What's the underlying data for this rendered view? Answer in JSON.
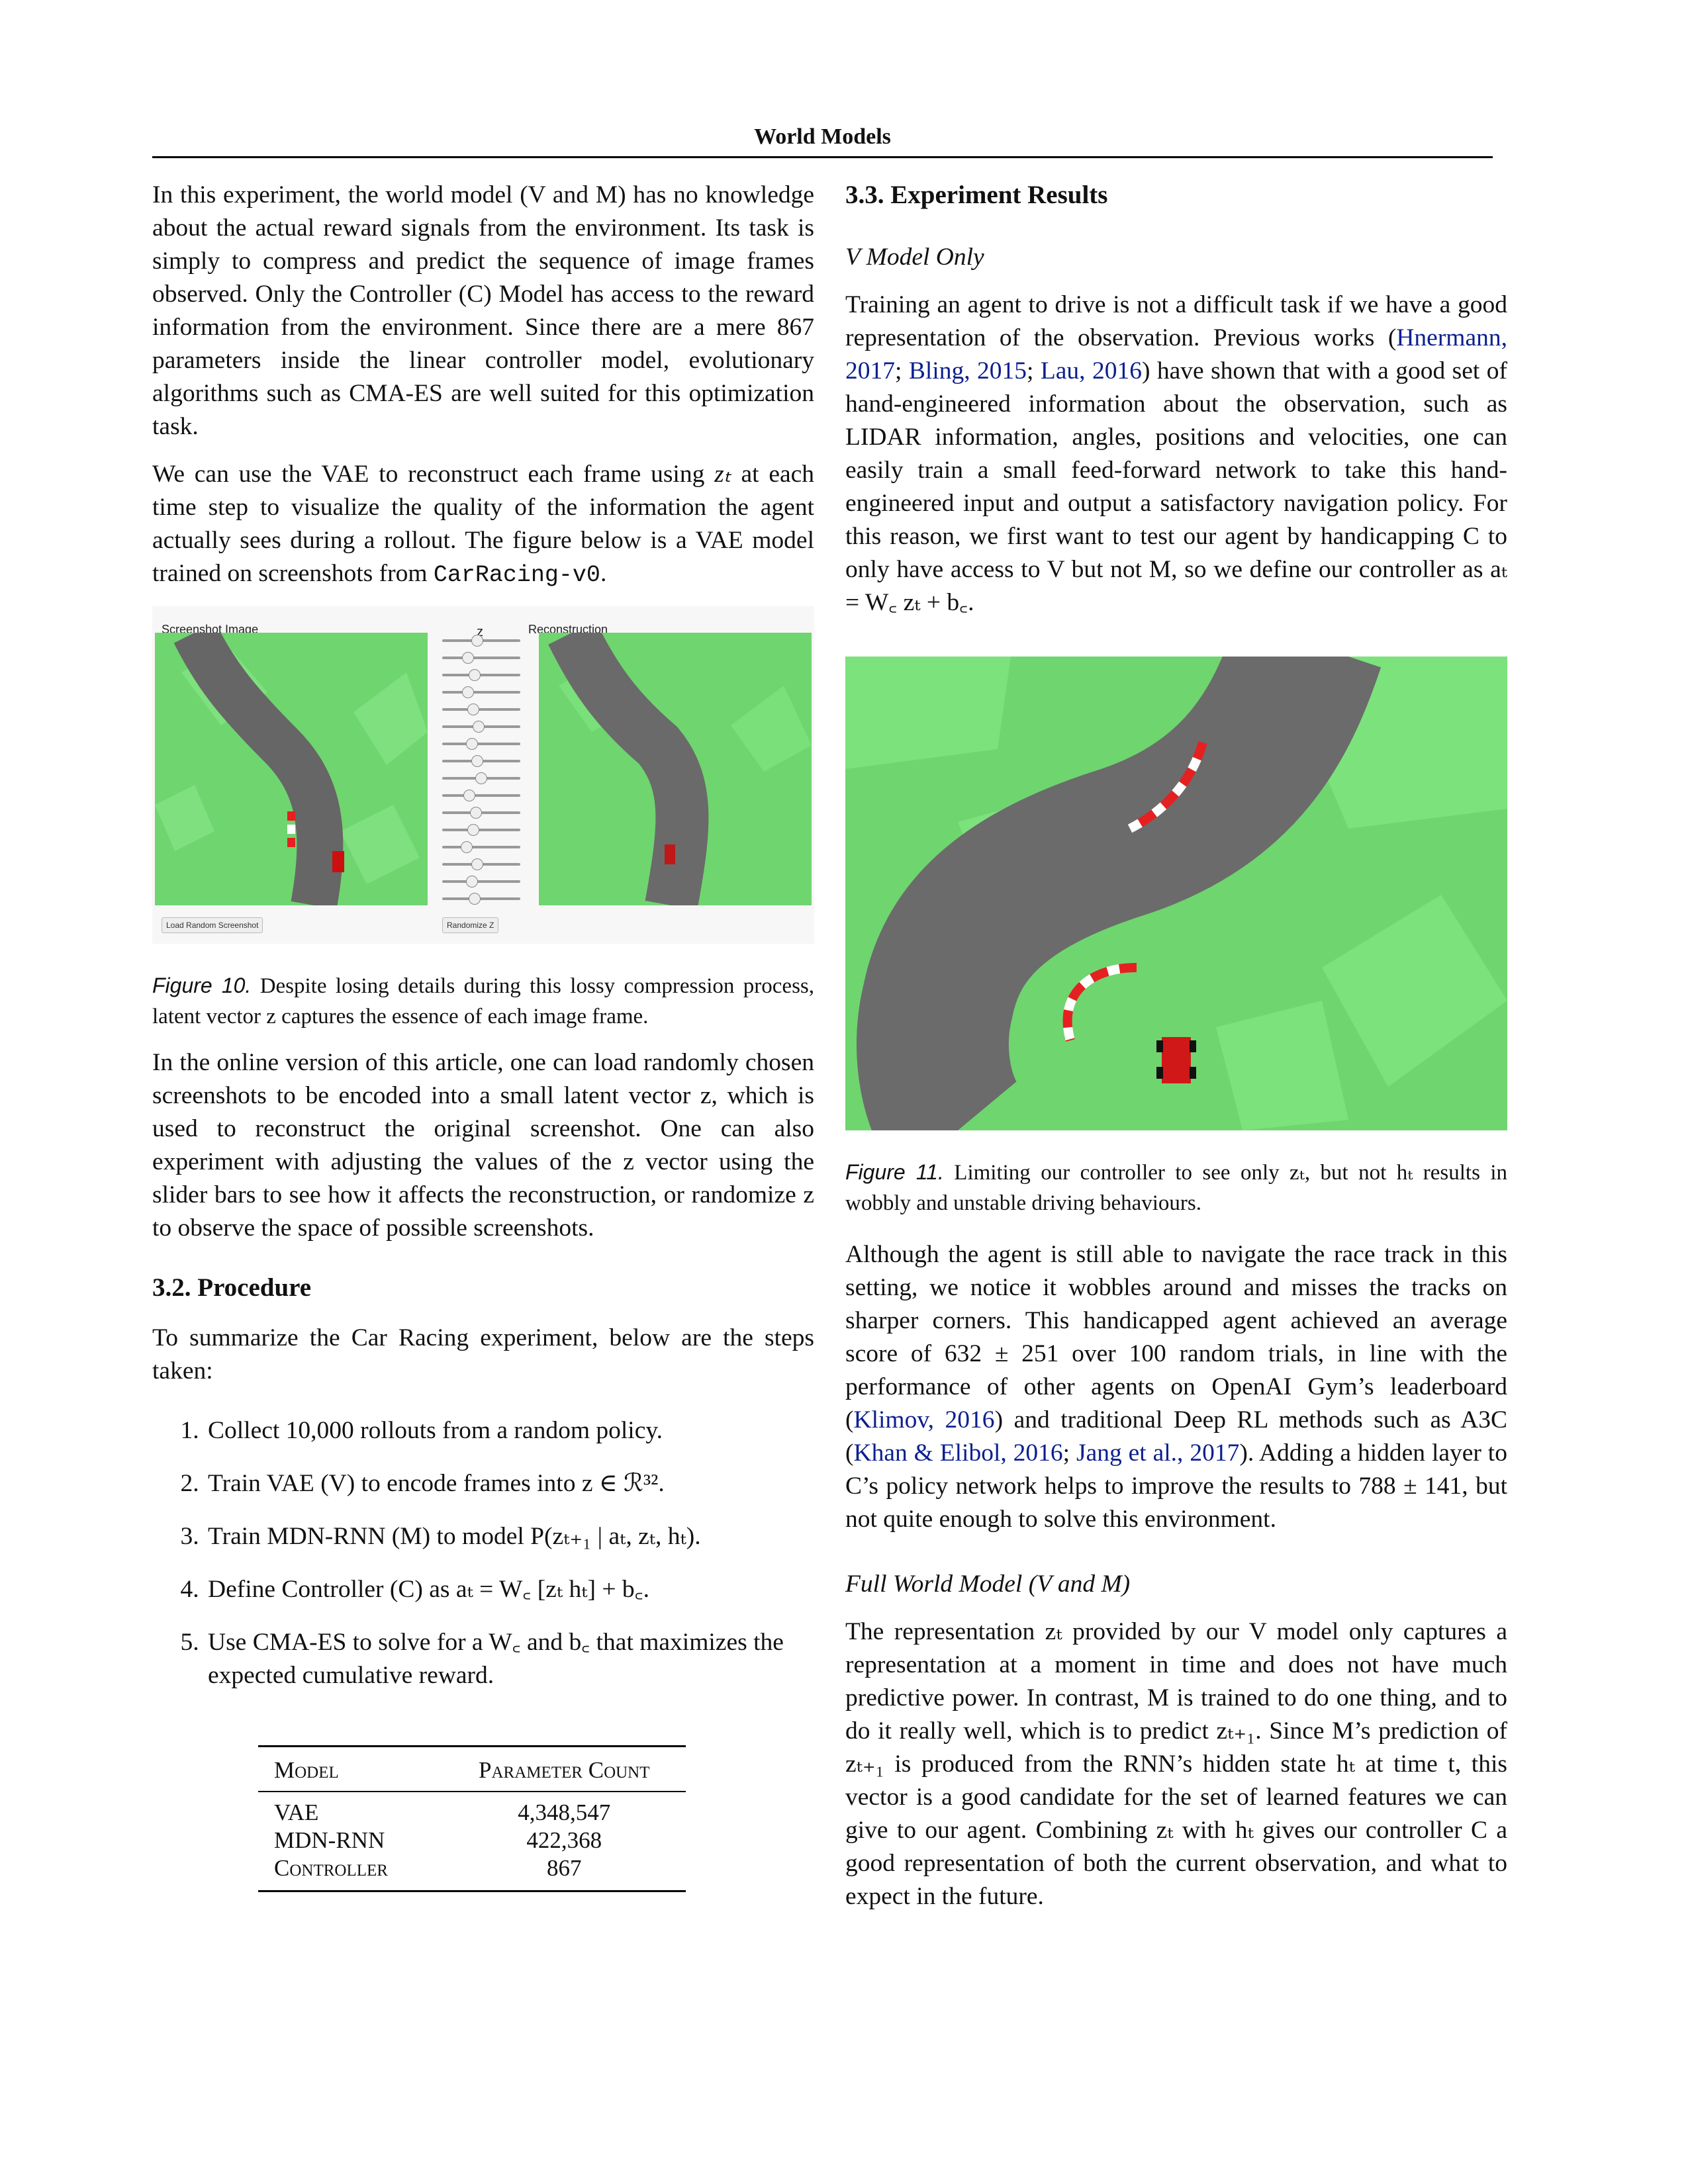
{
  "header": {
    "title": "World Models"
  },
  "left": {
    "p1": "In this experiment, the world model (V and M) has no knowledge about the actual reward signals from the environment. Its task is simply to compress and predict the sequence of image frames observed. Only the Controller (C) Model has access to the reward information from the environment. Since there are a mere 867 parameters inside the linear controller model, evolutionary algorithms such as CMA-ES are well suited for this optimization task.",
    "p2_a": "We can use the VAE to reconstruct each frame using ",
    "p2_b": " at each time step to visualize the quality of the information the agent actually sees during a rollout. The figure below is a VAE model trained on screenshots from ",
    "p2_code": "CarRacing-v0",
    "p2_c": ".",
    "fig10": {
      "screenshot_label": "Screenshot Image",
      "z_label": "z",
      "reconstruction_label": "Reconstruction",
      "load_button": "Load Random Screenshot",
      "randomize_button": "Randomize Z",
      "caption_label": "Figure 10.",
      "caption_text": " Despite losing details during this lossy compression process, latent vector z captures the essence of each image frame."
    },
    "p3": "In the online version of this article, one can load randomly chosen screenshots to be encoded into a small latent vector z, which is used to reconstruct the original screenshot. One can also experiment with adjusting the values of the z vector using the slider bars to see how it affects the reconstruction, or randomize z to observe the space of possible screenshots.",
    "section_procedure": "3.2. Procedure",
    "p4": "To summarize the Car Racing experiment, below are the steps taken:",
    "steps": [
      "Collect 10,000 rollouts from a random policy.",
      "Train VAE (V) to encode frames into z ∈ ℛ³².",
      "Train MDN-RNN (M) to model P(zₜ₊₁ | aₜ, zₜ, hₜ).",
      "Define Controller (C) as aₜ = W꜀ [zₜ hₜ] + b꜀.",
      "Use CMA-ES to solve for a W꜀ and b꜀ that maximizes the expected cumulative reward."
    ],
    "table": {
      "headers": [
        "Model",
        "Parameter Count"
      ],
      "rows": [
        [
          "VAE",
          "4,348,547"
        ],
        [
          "MDN-RNN",
          "422,368"
        ],
        [
          "Controller",
          "867"
        ]
      ]
    }
  },
  "right": {
    "section_results": "3.3. Experiment Results",
    "sub_v": "V Model Only",
    "p1_a": "Training an agent to drive is not a difficult task if we have a good representation of the observation. Previous works (",
    "cite1": "Hnermann, 2017",
    "p1_b": "; ",
    "cite2": "Bling, 2015",
    "p1_c": "; ",
    "cite3": "Lau, 2016",
    "p1_d": ") have shown that with a good set of hand-engineered information about the observation, such as LIDAR information, angles, positions and velocities, one can easily train a small feed-forward network to take this hand-engineered input and output a satisfactory navigation policy. For this reason, we first want to test our agent by handicapping C to only have access to V but not M, so we define our controller as aₜ = W꜀ zₜ + b꜀.",
    "fig11": {
      "caption_label": "Figure 11.",
      "caption_text": " Limiting our controller to see only zₜ, but not hₜ results in wobbly and unstable driving behaviours."
    },
    "p2_a": "Although the agent is still able to navigate the race track in this setting, we notice it wobbles around and misses the tracks on sharper corners. This handicapped agent achieved an average score of 632 ± 251 over 100 random trials, in line with the performance of other agents on OpenAI Gym’s leaderboard (",
    "cite4": "Klimov, 2016",
    "p2_b": ") and traditional Deep RL methods such as A3C (",
    "cite5": "Khan & Elibol, 2016",
    "p2_c": "; ",
    "cite6": "Jang et al., 2017",
    "p2_d": "). Adding a hidden layer to C’s policy network helps to improve the results to 788 ± 141, but not quite enough to solve this environment.",
    "sub_full": "Full World Model (V and M)",
    "p3": "The representation zₜ provided by our V model only captures a representation at a moment in time and does not have much predictive power. In contrast, M is trained to do one thing, and to do it really well, which is to predict zₜ₊₁. Since M’s prediction of zₜ₊₁ is produced from the RNN’s hidden state hₜ at time t, this vector is a good candidate for the set of learned features we can give to our agent. Combining zₜ with hₜ gives our controller C a good representation of both the current observation, and what to expect in the future."
  },
  "math": {
    "zt": "zₜ"
  },
  "colors": {
    "grass": "#6fd56f",
    "grass_light": "#7fe07f",
    "track": "#6b6b6b",
    "curb_red": "#e52020",
    "link": "#0b1f8f"
  }
}
